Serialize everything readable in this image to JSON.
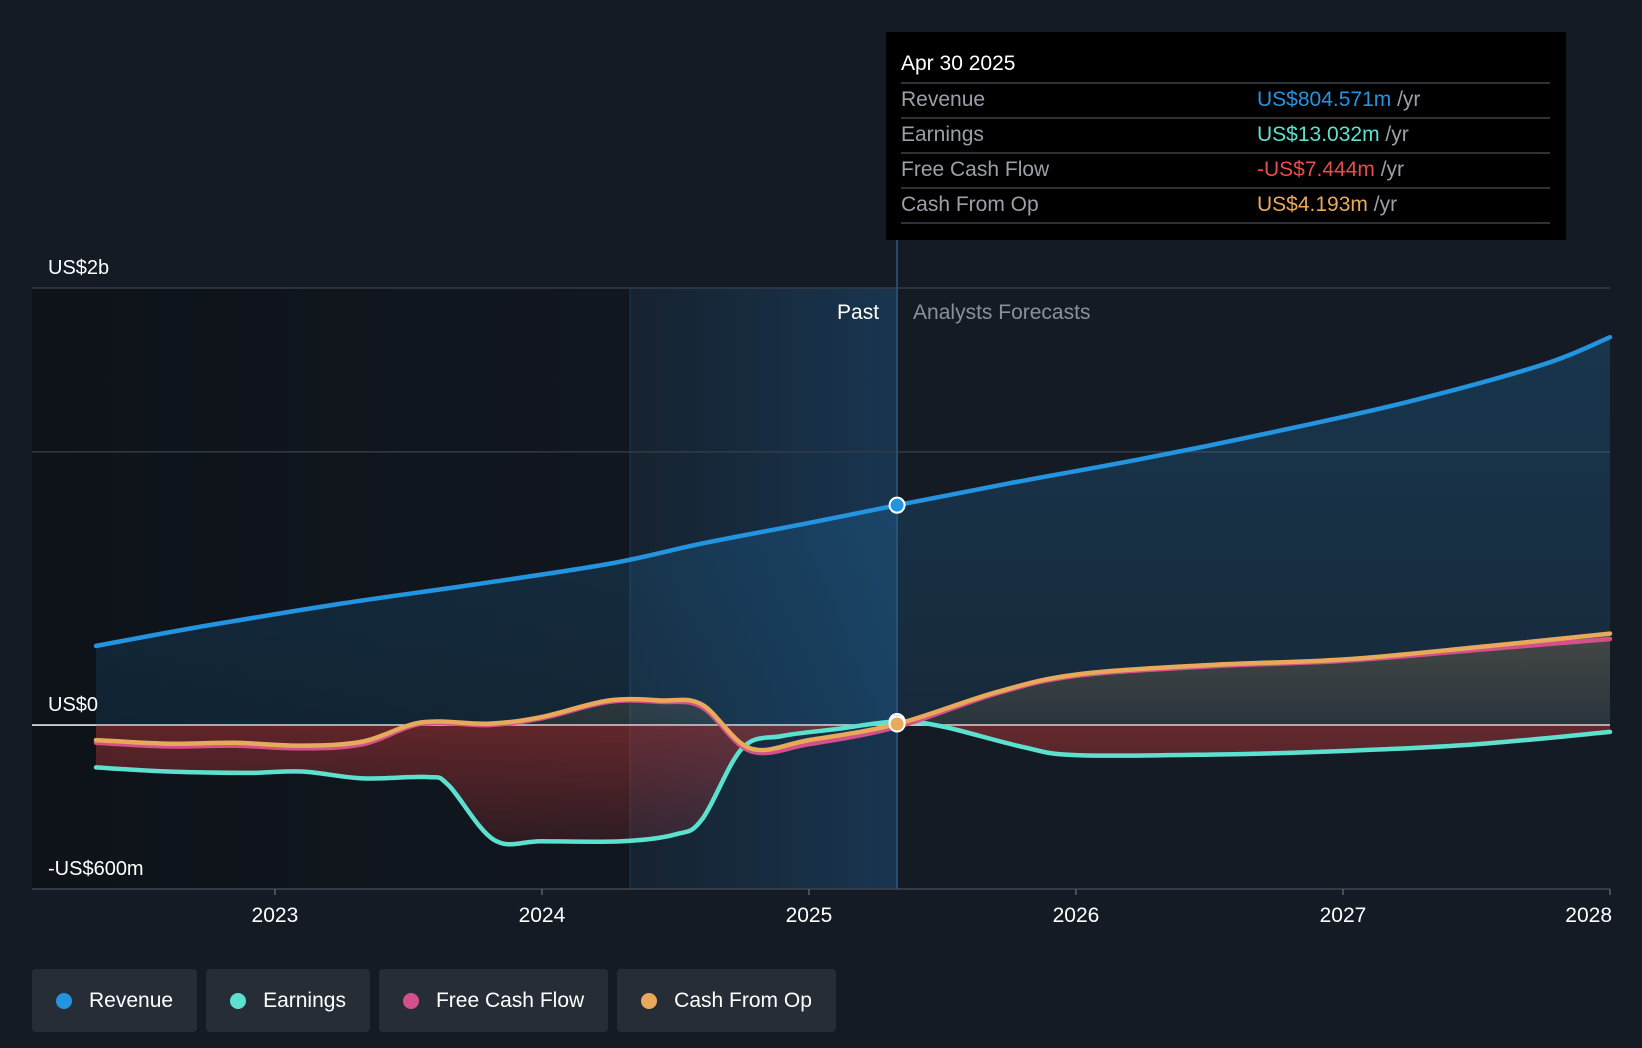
{
  "colors": {
    "background": "#151b24",
    "revenue": "#2394df",
    "earnings": "#5de1cf",
    "free_cash_flow": "#d4508a",
    "cash_from_op": "#e9a95a",
    "negative_value": "#e94c4c",
    "gridline": "#333a45",
    "zero_line": "#ffffff"
  },
  "tooltip": {
    "date": "Apr 30 2025",
    "rows": [
      {
        "label": "Revenue",
        "value": "US$804.571m",
        "unit": "/yr",
        "color": "#2394df"
      },
      {
        "label": "Earnings",
        "value": "US$13.032m",
        "unit": "/yr",
        "color": "#5de1cf"
      },
      {
        "label": "Free Cash Flow",
        "value": "-US$7.444m",
        "unit": "/yr",
        "color": "#e94c4c"
      },
      {
        "label": "Cash From Op",
        "value": "US$4.193m",
        "unit": "/yr",
        "color": "#e9a95a"
      }
    ]
  },
  "section_labels": {
    "past": "Past",
    "forecast": "Analysts Forecasts"
  },
  "legend": [
    {
      "name": "Revenue",
      "color": "#2394df"
    },
    {
      "name": "Earnings",
      "color": "#5de1cf"
    },
    {
      "name": "Free Cash Flow",
      "color": "#d4508a"
    },
    {
      "name": "Cash From Op",
      "color": "#e9a95a"
    }
  ],
  "chart_data": {
    "type": "line",
    "x_unit": "year",
    "y_unit": "US$m",
    "xlim": [
      2022.33,
      2028.0
    ],
    "ylim": [
      -600,
      1600
    ],
    "y_tick_labels": [
      {
        "value": 1600,
        "label": "US$2b"
      },
      {
        "value": 0,
        "label": "US$0"
      },
      {
        "value": -600,
        "label": "-US$600m"
      }
    ],
    "gridlines_y": [
      1600,
      1000,
      0,
      -600
    ],
    "x_ticks": [
      {
        "value": 2023,
        "label": "2023"
      },
      {
        "value": 2024,
        "label": "2024"
      },
      {
        "value": 2025,
        "label": "2025"
      },
      {
        "value": 2026,
        "label": "2026"
      },
      {
        "value": 2027,
        "label": "2027"
      },
      {
        "value": 2028,
        "label": "2028"
      }
    ],
    "highlight_range": [
      2024.33,
      2025.33
    ],
    "current_date": 2025.33,
    "past_range": [
      2022.33,
      2025.33
    ],
    "series": [
      {
        "name": "Revenue",
        "color": "#2394df",
        "points": [
          [
            2022.33,
            290
          ],
          [
            2022.75,
            365
          ],
          [
            2023.25,
            445
          ],
          [
            2023.75,
            515
          ],
          [
            2024.25,
            590
          ],
          [
            2024.6,
            665
          ],
          [
            2025.0,
            740
          ],
          [
            2025.33,
            805
          ],
          [
            2025.75,
            885
          ],
          [
            2026.25,
            975
          ],
          [
            2026.75,
            1075
          ],
          [
            2027.25,
            1185
          ],
          [
            2027.75,
            1320
          ],
          [
            2028.0,
            1420
          ]
        ]
      },
      {
        "name": "Earnings",
        "color": "#5de1cf",
        "points": [
          [
            2022.33,
            -155
          ],
          [
            2022.6,
            -170
          ],
          [
            2022.9,
            -175
          ],
          [
            2023.1,
            -170
          ],
          [
            2023.33,
            -195
          ],
          [
            2023.57,
            -190
          ],
          [
            2023.65,
            -220
          ],
          [
            2023.82,
            -420
          ],
          [
            2024.0,
            -425
          ],
          [
            2024.3,
            -425
          ],
          [
            2024.5,
            -400
          ],
          [
            2024.6,
            -345
          ],
          [
            2024.75,
            -85
          ],
          [
            2024.9,
            -40
          ],
          [
            2025.1,
            -15
          ],
          [
            2025.33,
            13
          ],
          [
            2025.5,
            -5
          ],
          [
            2025.8,
            -80
          ],
          [
            2026.0,
            -110
          ],
          [
            2026.5,
            -108
          ],
          [
            2027.0,
            -95
          ],
          [
            2027.5,
            -70
          ],
          [
            2028.0,
            -25
          ]
        ]
      },
      {
        "name": "Free Cash Flow",
        "color": "#d4508a",
        "points": [
          [
            2022.33,
            -65
          ],
          [
            2022.6,
            -78
          ],
          [
            2022.85,
            -75
          ],
          [
            2023.1,
            -85
          ],
          [
            2023.33,
            -70
          ],
          [
            2023.55,
            5
          ],
          [
            2023.8,
            0
          ],
          [
            2024.0,
            25
          ],
          [
            2024.25,
            85
          ],
          [
            2024.45,
            85
          ],
          [
            2024.6,
            65
          ],
          [
            2024.78,
            -95
          ],
          [
            2025.0,
            -70
          ],
          [
            2025.33,
            -7
          ],
          [
            2025.7,
            115
          ],
          [
            2026.0,
            180
          ],
          [
            2026.5,
            215
          ],
          [
            2027.0,
            235
          ],
          [
            2027.5,
            275
          ],
          [
            2028.0,
            315
          ]
        ]
      },
      {
        "name": "Cash From Op",
        "color": "#e9a95a",
        "points": [
          [
            2022.33,
            -55
          ],
          [
            2022.6,
            -68
          ],
          [
            2022.85,
            -65
          ],
          [
            2023.1,
            -75
          ],
          [
            2023.33,
            -60
          ],
          [
            2023.55,
            10
          ],
          [
            2023.8,
            5
          ],
          [
            2024.0,
            30
          ],
          [
            2024.25,
            90
          ],
          [
            2024.45,
            90
          ],
          [
            2024.6,
            75
          ],
          [
            2024.78,
            -85
          ],
          [
            2025.0,
            -55
          ],
          [
            2025.33,
            4
          ],
          [
            2025.7,
            120
          ],
          [
            2026.0,
            185
          ],
          [
            2026.5,
            220
          ],
          [
            2027.0,
            240
          ],
          [
            2027.5,
            285
          ],
          [
            2028.0,
            335
          ]
        ]
      }
    ],
    "markers": [
      {
        "series": "Revenue",
        "x": 2025.33,
        "y": 805
      },
      {
        "series": "Earnings",
        "x": 2025.33,
        "y": 13
      },
      {
        "series": "Cash From Op",
        "x": 2025.33,
        "y": 4
      }
    ]
  }
}
